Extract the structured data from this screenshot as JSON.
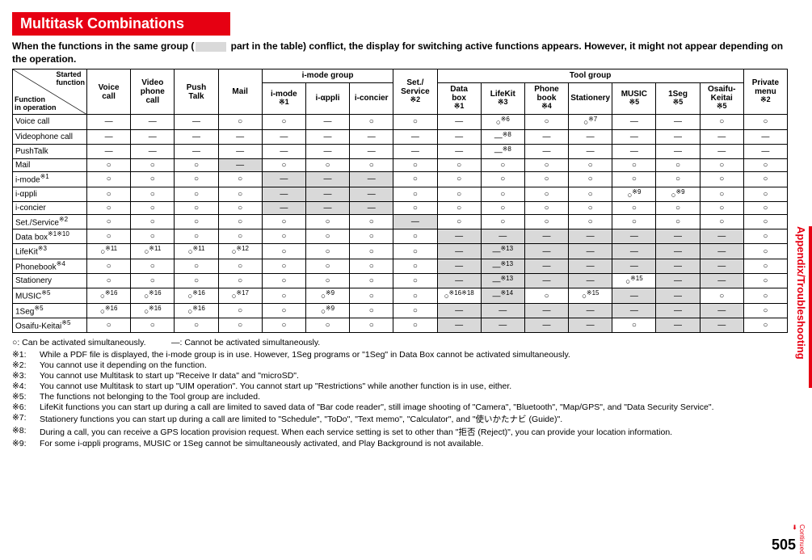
{
  "title": "Multitask Combinations",
  "intro_before": "When the functions in the same group (",
  "intro_after": " part in the table) conflict, the display for switching active functions appears. However, it might not appear depending on the operation.",
  "corner": {
    "tl": "Started\nfunction",
    "bl": "Function\nin operation"
  },
  "col_groups": [
    {
      "label": "Voice call"
    },
    {
      "label": "Video phone call"
    },
    {
      "label": "Push Talk"
    },
    {
      "label": "Mail"
    },
    {
      "label": "i-mode group",
      "sub": [
        {
          "label": "i-mode",
          "note": "※1"
        },
        {
          "label": "i-αppli"
        },
        {
          "label": "i-concier"
        }
      ]
    },
    {
      "label": "Set./ Service",
      "note": "※2"
    },
    {
      "label": "Tool group",
      "sub": [
        {
          "label": "Data box",
          "note": "※1"
        },
        {
          "label": "LifeKit",
          "note": "※3"
        },
        {
          "label": "Phone book",
          "note": "※4"
        },
        {
          "label": "Stationery"
        },
        {
          "label": "MUSIC",
          "note": "※5"
        },
        {
          "label": "1Seg",
          "note": "※5"
        },
        {
          "label": "Osaifu-Keitai",
          "note": "※5"
        }
      ]
    },
    {
      "label": "Private menu",
      "note": "※2"
    }
  ],
  "rows": [
    {
      "h": "Voice call",
      "c": [
        "—",
        "—",
        "—",
        "○",
        "○",
        "—",
        "○",
        "○",
        "—",
        [
          "○",
          "※6"
        ],
        "○",
        [
          "○",
          "※7"
        ],
        "—",
        "—",
        "○",
        "○"
      ]
    },
    {
      "h": "Videophone call",
      "c": [
        "—",
        "—",
        "—",
        "—",
        "—",
        "—",
        "—",
        "—",
        "—",
        [
          "—",
          "※8"
        ],
        "—",
        "—",
        "—",
        "—",
        "—",
        "—"
      ]
    },
    {
      "h": "PushTalk",
      "c": [
        "—",
        "—",
        "—",
        "—",
        "—",
        "—",
        "—",
        "—",
        "—",
        [
          "—",
          "※8"
        ],
        "—",
        "—",
        "—",
        "—",
        "—",
        "—"
      ]
    },
    {
      "h": "Mail",
      "c": [
        "○",
        "○",
        "○",
        [
          "—",
          "",
          true
        ],
        "○",
        "○",
        "○",
        "○",
        "○",
        "○",
        "○",
        "○",
        "○",
        "○",
        "○",
        "○"
      ]
    },
    {
      "h": "i-mode※1",
      "c": [
        "○",
        "○",
        "○",
        "○",
        [
          "—",
          "",
          true
        ],
        [
          "—",
          "",
          true
        ],
        [
          "—",
          "",
          true
        ],
        "○",
        "○",
        "○",
        "○",
        "○",
        "○",
        "○",
        "○",
        "○"
      ]
    },
    {
      "h": "i-αppli",
      "c": [
        "○",
        "○",
        "○",
        "○",
        [
          "—",
          "",
          true
        ],
        [
          "—",
          "",
          true
        ],
        [
          "—",
          "",
          true
        ],
        "○",
        "○",
        "○",
        "○",
        "○",
        [
          "○",
          "※9"
        ],
        [
          "○",
          "※9"
        ],
        "○",
        "○"
      ]
    },
    {
      "h": "i-concier",
      "c": [
        "○",
        "○",
        "○",
        "○",
        [
          "—",
          "",
          true
        ],
        [
          "—",
          "",
          true
        ],
        [
          "—",
          "",
          true
        ],
        "○",
        "○",
        "○",
        "○",
        "○",
        "○",
        "○",
        "○",
        "○"
      ]
    },
    {
      "h": "Set./Service※2",
      "c": [
        "○",
        "○",
        "○",
        "○",
        "○",
        "○",
        "○",
        [
          "—",
          "",
          true
        ],
        "○",
        "○",
        "○",
        "○",
        "○",
        "○",
        "○",
        "○"
      ]
    },
    {
      "h": "Data box※1※10",
      "c": [
        "○",
        "○",
        "○",
        "○",
        "○",
        "○",
        "○",
        "○",
        [
          "—",
          "",
          true
        ],
        [
          "—",
          "",
          true
        ],
        [
          "—",
          "",
          true
        ],
        [
          "—",
          "",
          true
        ],
        [
          "—",
          "",
          true
        ],
        [
          "—",
          "",
          true
        ],
        [
          "—",
          "",
          true
        ],
        "○"
      ]
    },
    {
      "h": "LifeKit※3",
      "c": [
        [
          "○",
          "※11"
        ],
        [
          "○",
          "※11"
        ],
        [
          "○",
          "※11"
        ],
        [
          "○",
          "※12"
        ],
        "○",
        "○",
        "○",
        "○",
        [
          "—",
          "",
          true
        ],
        [
          "—",
          "※13",
          true
        ],
        [
          "—",
          "",
          true
        ],
        [
          "—",
          "",
          true
        ],
        [
          "—",
          "",
          true
        ],
        [
          "—",
          "",
          true
        ],
        [
          "—",
          "",
          true
        ],
        "○"
      ]
    },
    {
      "h": "Phonebook※4",
      "c": [
        "○",
        "○",
        "○",
        "○",
        "○",
        "○",
        "○",
        "○",
        [
          "—",
          "",
          true
        ],
        [
          "—",
          "※13",
          true
        ],
        [
          "—",
          "",
          true
        ],
        [
          "—",
          "",
          true
        ],
        [
          "—",
          "",
          true
        ],
        [
          "—",
          "",
          true
        ],
        [
          "—",
          "",
          true
        ],
        "○"
      ]
    },
    {
      "h": "Stationery",
      "c": [
        "○",
        "○",
        "○",
        "○",
        "○",
        "○",
        "○",
        "○",
        [
          "—",
          "",
          true
        ],
        [
          "—",
          "※13",
          true
        ],
        [
          "—",
          "",
          true
        ],
        [
          "—",
          "",
          true
        ],
        [
          "○",
          "※15"
        ],
        [
          "—",
          "",
          true
        ],
        [
          "—",
          "",
          true
        ],
        "○"
      ]
    },
    {
      "h": "MUSIC※5",
      "c": [
        [
          "○",
          "※16"
        ],
        [
          "○",
          "※16"
        ],
        [
          "○",
          "※16"
        ],
        [
          "○",
          "※17"
        ],
        "○",
        [
          "○",
          "※9"
        ],
        "○",
        "○",
        [
          "○",
          "※16※18"
        ],
        [
          "—",
          "※14",
          true
        ],
        "○",
        [
          "○",
          "※15"
        ],
        [
          "—",
          "",
          true
        ],
        [
          "—",
          "",
          true
        ],
        "○",
        "○"
      ]
    },
    {
      "h": "1Seg※5",
      "c": [
        [
          "○",
          "※16"
        ],
        [
          "○",
          "※16"
        ],
        [
          "○",
          "※16"
        ],
        "○",
        "○",
        [
          "○",
          "※9"
        ],
        "○",
        "○",
        [
          "—",
          "",
          true
        ],
        [
          "—",
          "",
          true
        ],
        [
          "—",
          "",
          true
        ],
        [
          "—",
          "",
          true
        ],
        [
          "—",
          "",
          true
        ],
        [
          "—",
          "",
          true
        ],
        [
          "—",
          "",
          true
        ],
        "○"
      ]
    },
    {
      "h": "Osaifu-Keitai※5",
      "c": [
        "○",
        "○",
        "○",
        "○",
        "○",
        "○",
        "○",
        "○",
        [
          "—",
          "",
          true
        ],
        [
          "—",
          "",
          true
        ],
        [
          "—",
          "",
          true
        ],
        [
          "—",
          "",
          true
        ],
        "○",
        [
          "—",
          "",
          true
        ],
        [
          "—",
          "",
          true
        ],
        "○"
      ]
    }
  ],
  "legend": "○: Can be activated simultaneously.　　　—: Cannot be activated simultaneously.",
  "footnotes": [
    [
      "※1:",
      "While a PDF file is displayed, the i-mode group is in use. However, 1Seg programs or \"1Seg\" in Data Box cannot be activated simultaneously."
    ],
    [
      "※2:",
      "You cannot use it depending on the function."
    ],
    [
      "※3:",
      "You cannot use Multitask to start up \"Receive Ir data\" and \"microSD\"."
    ],
    [
      "※4:",
      "You cannot use Multitask to start up \"UIM operation\". You cannot start up \"Restrictions\" while another function is in use, either."
    ],
    [
      "※5:",
      "The functions not belonging to the Tool group are included."
    ],
    [
      "※6:",
      "LifeKit functions you can start up during a call are limited to saved data of \"Bar code reader\", still image shooting of \"Camera\", \"Bluetooth\", \"Map/GPS\", and \"Data Security Service\"."
    ],
    [
      "※7:",
      "Stationery functions you can start up during a call are limited to \"Schedule\", \"ToDo\", \"Text memo\", \"Calculator\", and \"使いかたナビ (Guide)\"."
    ],
    [
      "※8:",
      "During a call, you can receive a GPS location provision request. When each service setting is set to other than \"拒否 (Reject)\", you can provide your location information."
    ],
    [
      "※9:",
      "For some i-αppli programs, MUSIC or 1Seg cannot be simultaneously activated, and Play Background is not available."
    ]
  ],
  "side": "Appendix/Troubleshooting",
  "page": "505",
  "continued": "Continued"
}
